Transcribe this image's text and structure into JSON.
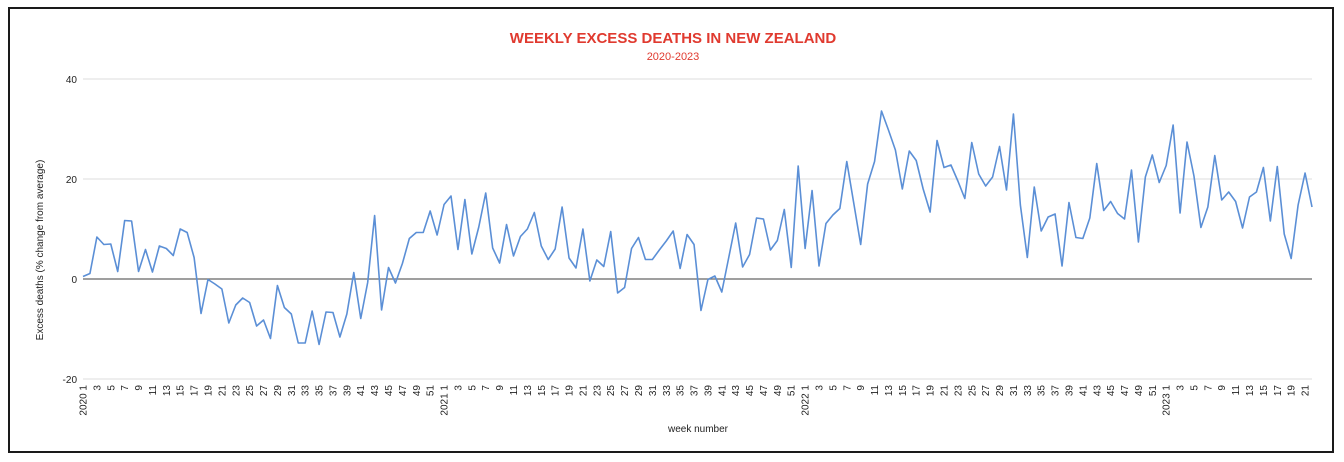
{
  "chart_data": {
    "type": "line",
    "title": "WEEKLY EXCESS DEATHS IN NEW ZEALAND",
    "subtitle": "2020-2023",
    "xlabel": "week number",
    "ylabel": "Excess deaths (% change from average)",
    "ylim": [
      -20,
      40
    ],
    "yticks": [
      -20,
      0,
      20,
      40
    ],
    "grid": true,
    "legend": "none",
    "line_color": "#5b8fd6",
    "title_color": "#e03a2f",
    "x_tick_labels": [
      "2020 1",
      "3",
      "5",
      "7",
      "9",
      "11",
      "13",
      "15",
      "17",
      "19",
      "21",
      "23",
      "25",
      "27",
      "29",
      "31",
      "33",
      "35",
      "37",
      "39",
      "41",
      "43",
      "45",
      "47",
      "49",
      "51",
      "2021 1",
      "3",
      "5",
      "7",
      "9",
      "11",
      "13",
      "15",
      "17",
      "19",
      "21",
      "23",
      "25",
      "27",
      "29",
      "31",
      "33",
      "35",
      "37",
      "39",
      "41",
      "43",
      "45",
      "47",
      "49",
      "51",
      "2022 1",
      "3",
      "5",
      "7",
      "9",
      "11",
      "13",
      "15",
      "17",
      "19",
      "21",
      "23",
      "25",
      "27",
      "29",
      "31",
      "33",
      "35",
      "37",
      "39",
      "41",
      "43",
      "45",
      "47",
      "49",
      "51",
      "2023 1",
      "3",
      "5",
      "7",
      "9",
      "11",
      "13",
      "15",
      "17",
      "19",
      "21"
    ],
    "series": [
      {
        "values": [
          0.5,
          1.1,
          8.4,
          6.9,
          7.0,
          1.5,
          11.7,
          11.6,
          1.5,
          5.9,
          1.4,
          6.6,
          6.1,
          4.7,
          10.0,
          9.3,
          4.3,
          -6.9,
          -0.1,
          -1.0,
          -2.0,
          -8.8,
          -5.2,
          -3.8,
          -4.7,
          -9.4,
          -8.2,
          -11.9,
          -1.3,
          -5.7,
          -7.0,
          -12.8,
          -12.8,
          -6.4,
          -13.1,
          -6.6,
          -6.7,
          -11.6,
          -7.0,
          1.3,
          -7.9,
          -0.7,
          12.7,
          -6.2,
          2.3,
          -0.8,
          3.1,
          8.1,
          9.3,
          9.3,
          13.6,
          8.8,
          14.9,
          16.6,
          5.9,
          15.9,
          5.0,
          10.4,
          17.2,
          6.2,
          3.2,
          10.9,
          4.6,
          8.5,
          10.0,
          13.3,
          6.6,
          3.9,
          6.0,
          14.4,
          4.2,
          2.2,
          10.0,
          -0.4,
          3.8,
          2.5,
          9.5,
          -2.8,
          -1.7,
          6.1,
          8.3,
          3.9,
          3.9,
          5.8,
          7.6,
          9.6,
          2.1,
          8.9,
          6.9,
          -6.3,
          -0.1,
          0.6,
          -2.6,
          4.3,
          11.2,
          2.4,
          4.9,
          12.2,
          12.0,
          5.8,
          7.7,
          13.9,
          2.3,
          22.6,
          6.1,
          17.7,
          2.6,
          11.1,
          12.8,
          14.1,
          23.5,
          15.2,
          6.9,
          19.0,
          23.5,
          33.6,
          29.8,
          25.8,
          18.0,
          25.6,
          23.7,
          18.0,
          13.4,
          27.7,
          22.3,
          22.8,
          19.6,
          16.1,
          27.3,
          21.0,
          18.6,
          20.4,
          26.5,
          17.8,
          33.0,
          14.8,
          4.3,
          18.4,
          9.6,
          12.4,
          13.0,
          2.6,
          15.3,
          8.3,
          8.1,
          12.2,
          23.1,
          13.7,
          15.5,
          13.1,
          12.0,
          21.8,
          7.4,
          20.4,
          24.8,
          19.3,
          22.7,
          30.8,
          13.2,
          27.4,
          20.6,
          10.3,
          14.4,
          24.7,
          15.8,
          17.4,
          15.5,
          10.2,
          16.4,
          17.4,
          22.3,
          11.6,
          22.5,
          9.0,
          4.1,
          14.8,
          21.2,
          14.4
        ]
      }
    ]
  }
}
